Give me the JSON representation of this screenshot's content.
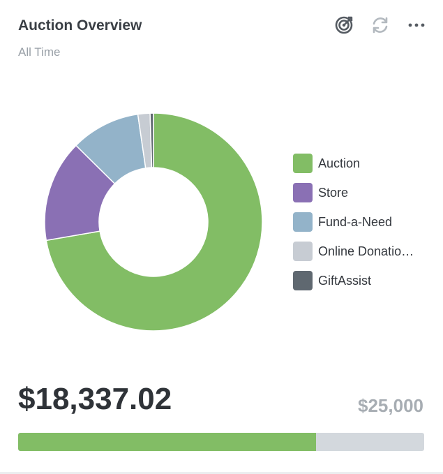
{
  "card": {
    "title": "Auction Overview",
    "subtitle": "All Time"
  },
  "toolbar": {
    "icons": [
      "target-icon",
      "refresh-icon",
      "more-icon"
    ]
  },
  "chart_data": {
    "type": "pie",
    "variant": "donut",
    "categories": [
      "Auction",
      "Store",
      "Fund-a-Need",
      "Online Donatio…",
      "GiftAssist"
    ],
    "values": [
      72.3,
      15.1,
      10.3,
      1.8,
      0.5
    ],
    "unit": "percent (estimated)",
    "colors": [
      "#82bd65",
      "#8a70b4",
      "#93b3c9",
      "#c7ccd3",
      "#5f6870"
    ],
    "legend_position": "right"
  },
  "legend": {
    "items": [
      {
        "label": "Auction",
        "color": "#82bd65"
      },
      {
        "label": "Store",
        "color": "#8a70b4"
      },
      {
        "label": "Fund-a-Need",
        "color": "#93b3c9"
      },
      {
        "label": "Online Donatio…",
        "color": "#c7ccd3"
      },
      {
        "label": "GiftAssist",
        "color": "#5f6870"
      }
    ]
  },
  "totals": {
    "raised": "$18,337.02",
    "goal": "$25,000",
    "progress_fraction": 0.7335
  },
  "colors": {
    "accent": "#82bd65",
    "track": "#d3d8dd"
  }
}
